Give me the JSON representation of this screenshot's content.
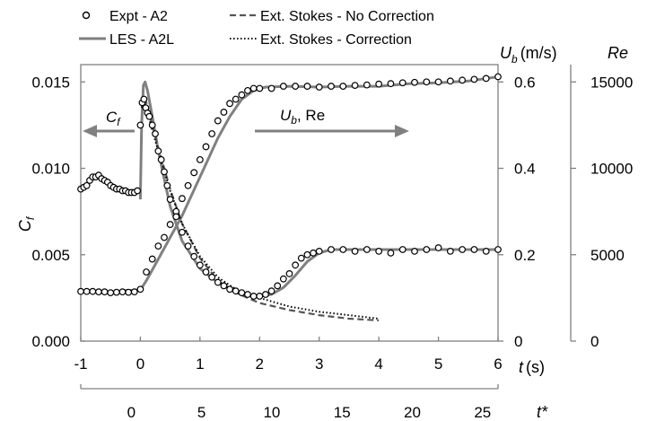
{
  "chart_data": {
    "type": "line",
    "legend": {
      "position": "top",
      "entries": [
        {
          "key": "expt",
          "label": "Expt - A2",
          "marker": "open-circle"
        },
        {
          "key": "les",
          "label": "LES - A2L",
          "line": "solid"
        },
        {
          "key": "stokes_nc",
          "label": "Ext. Stokes - No Correction",
          "line": "dashed"
        },
        {
          "key": "stokes_c",
          "label": "Ext. Stokes - Correction",
          "line": "dotted"
        }
      ]
    },
    "axes": {
      "x": {
        "label_var": "t",
        "label_unit": "(s)",
        "range": [
          -1,
          6
        ],
        "ticks": [
          "-1",
          "0",
          "1",
          "2",
          "3",
          "4",
          "5",
          "6"
        ]
      },
      "x2": {
        "label": "t*",
        "range": [
          -3.6,
          26.1
        ],
        "ticks": [
          "0",
          "5",
          "10",
          "15",
          "20",
          "25"
        ]
      },
      "y_left": {
        "label_var": "C",
        "label_sub": "f",
        "range": [
          0,
          0.016
        ],
        "ticks": [
          "0.000",
          "0.005",
          "0.010",
          "0.015"
        ]
      },
      "y_ub": {
        "label_var": "U",
        "label_sub": "b",
        "label_unit": "(m/s)",
        "range": [
          0,
          0.64
        ],
        "ticks": [
          "0",
          "0.2",
          "0.4",
          "0.6"
        ]
      },
      "y_re": {
        "label": "Re",
        "range": [
          0,
          16000
        ],
        "ticks": [
          "0",
          "5000",
          "10000",
          "15000"
        ]
      }
    },
    "annotations": {
      "cf_arrow": {
        "var": "C",
        "sub": "f"
      },
      "ub_re_arrow": {
        "var": "U",
        "sub": "b",
        "suffix": ", Re"
      }
    },
    "grid": false,
    "series": [
      {
        "key": "les_ub",
        "legend": "les",
        "axis": "y_ub",
        "x": [
          -0.3,
          0.0,
          0.1,
          0.3,
          0.5,
          0.7,
          0.9,
          1.1,
          1.3,
          1.5,
          1.7,
          1.9,
          2.1,
          2.5,
          3.0,
          3.5,
          4.0,
          4.5,
          5.0,
          5.5,
          6.0
        ],
        "y": [
          0.117,
          0.118,
          0.14,
          0.19,
          0.24,
          0.29,
          0.35,
          0.41,
          0.47,
          0.52,
          0.56,
          0.58,
          0.588,
          0.59,
          0.588,
          0.59,
          0.59,
          0.596,
          0.598,
          0.602,
          0.612
        ]
      },
      {
        "key": "expt_ub",
        "legend": "expt",
        "axis": "y_ub",
        "x": [
          -1.0,
          -0.9,
          -0.8,
          -0.7,
          -0.6,
          -0.5,
          -0.4,
          -0.3,
          -0.2,
          -0.1,
          0.0,
          0.1,
          0.2,
          0.3,
          0.4,
          0.5,
          0.6,
          0.7,
          0.8,
          0.9,
          1.0,
          1.1,
          1.2,
          1.3,
          1.4,
          1.5,
          1.6,
          1.7,
          1.8,
          1.9,
          2.0,
          2.2,
          2.4,
          2.6,
          2.8,
          3.0,
          3.2,
          3.4,
          3.6,
          3.8,
          4.0,
          4.2,
          4.4,
          4.6,
          4.8,
          5.0,
          5.2,
          5.4,
          5.6,
          5.8,
          6.0
        ],
        "y": [
          0.115,
          0.115,
          0.115,
          0.114,
          0.114,
          0.112,
          0.113,
          0.114,
          0.113,
          0.114,
          0.12,
          0.16,
          0.19,
          0.22,
          0.24,
          0.27,
          0.3,
          0.33,
          0.36,
          0.39,
          0.42,
          0.45,
          0.48,
          0.51,
          0.53,
          0.55,
          0.56,
          0.57,
          0.58,
          0.585,
          0.585,
          0.585,
          0.59,
          0.59,
          0.59,
          0.588,
          0.59,
          0.59,
          0.592,
          0.593,
          0.595,
          0.596,
          0.598,
          0.599,
          0.6,
          0.6,
          0.602,
          0.604,
          0.606,
          0.608,
          0.612
        ]
      },
      {
        "key": "les_cf",
        "legend": "les",
        "axis": "y_left",
        "x": [
          0.0,
          0.02,
          0.05,
          0.08,
          0.12,
          0.2,
          0.3,
          0.5,
          0.7,
          1.0,
          1.3,
          1.6,
          1.8,
          2.0,
          2.2,
          2.4,
          2.6,
          2.8,
          3.0,
          3.2,
          3.5,
          4.0,
          4.5,
          5.0,
          5.5,
          6.0
        ],
        "y": [
          0.0082,
          0.0125,
          0.0148,
          0.015,
          0.0145,
          0.013,
          0.011,
          0.0078,
          0.0058,
          0.0042,
          0.0034,
          0.0029,
          0.0027,
          0.0026,
          0.0027,
          0.0031,
          0.0038,
          0.0046,
          0.0051,
          0.0053,
          0.0053,
          0.0053,
          0.0053,
          0.0053,
          0.0053,
          0.0053
        ]
      },
      {
        "key": "expt_cf",
        "legend": "expt",
        "axis": "y_left",
        "x": [
          -1.0,
          -0.95,
          -0.9,
          -0.85,
          -0.8,
          -0.75,
          -0.7,
          -0.65,
          -0.6,
          -0.55,
          -0.5,
          -0.45,
          -0.4,
          -0.35,
          -0.3,
          -0.25,
          -0.2,
          -0.15,
          -0.1,
          -0.05,
          0.0,
          0.03,
          0.06,
          0.09,
          0.12,
          0.15,
          0.2,
          0.25,
          0.3,
          0.35,
          0.4,
          0.45,
          0.5,
          0.6,
          0.7,
          0.8,
          0.9,
          1.0,
          1.1,
          1.2,
          1.3,
          1.4,
          1.5,
          1.6,
          1.7,
          1.8,
          1.9,
          2.0,
          2.1,
          2.2,
          2.3,
          2.4,
          2.5,
          2.6,
          2.7,
          2.8,
          2.9,
          3.0,
          3.2,
          3.4,
          3.6,
          3.8,
          4.0,
          4.2,
          4.4,
          4.6,
          4.8,
          5.0,
          5.2,
          5.4,
          5.6,
          5.8,
          6.0
        ],
        "y": [
          0.0088,
          0.0089,
          0.009,
          0.0093,
          0.0095,
          0.0095,
          0.0096,
          0.0094,
          0.0093,
          0.0092,
          0.009,
          0.0089,
          0.0088,
          0.0088,
          0.0087,
          0.0087,
          0.0086,
          0.0086,
          0.0086,
          0.0087,
          0.0125,
          0.0138,
          0.014,
          0.0135,
          0.0132,
          0.013,
          0.0125,
          0.012,
          0.011,
          0.0105,
          0.0098,
          0.009,
          0.0082,
          0.0072,
          0.0063,
          0.0055,
          0.0049,
          0.0044,
          0.004,
          0.0037,
          0.0034,
          0.0032,
          0.003,
          0.0029,
          0.0028,
          0.0027,
          0.0026,
          0.0026,
          0.0027,
          0.0029,
          0.0032,
          0.0036,
          0.0039,
          0.0044,
          0.0048,
          0.005,
          0.0051,
          0.0052,
          0.0053,
          0.0053,
          0.0052,
          0.0053,
          0.0052,
          0.0051,
          0.0053,
          0.0052,
          0.0053,
          0.0054,
          0.0052,
          0.0053,
          0.0053,
          0.0052,
          0.0053
        ]
      },
      {
        "key": "stokes_nc_cf",
        "legend": "stokes_nc",
        "axis": "y_left",
        "x": [
          0.02,
          0.05,
          0.1,
          0.2,
          0.3,
          0.5,
          0.7,
          1.0,
          1.3,
          1.6,
          2.0,
          2.5,
          3.0,
          3.5,
          4.0
        ],
        "y": [
          0.0138,
          0.0142,
          0.0138,
          0.0125,
          0.0112,
          0.0088,
          0.0068,
          0.0048,
          0.0035,
          0.0028,
          0.0022,
          0.0018,
          0.0015,
          0.0013,
          0.0012
        ]
      },
      {
        "key": "stokes_c_cf",
        "legend": "stokes_c",
        "axis": "y_left",
        "x": [
          0.02,
          0.05,
          0.1,
          0.2,
          0.3,
          0.5,
          0.7,
          1.0,
          1.3,
          1.6,
          2.0,
          2.5,
          3.0,
          3.5,
          4.0
        ],
        "y": [
          0.0135,
          0.0139,
          0.0135,
          0.0122,
          0.011,
          0.0087,
          0.0068,
          0.0049,
          0.0037,
          0.003,
          0.0025,
          0.002,
          0.0017,
          0.0015,
          0.0013
        ]
      }
    ]
  }
}
